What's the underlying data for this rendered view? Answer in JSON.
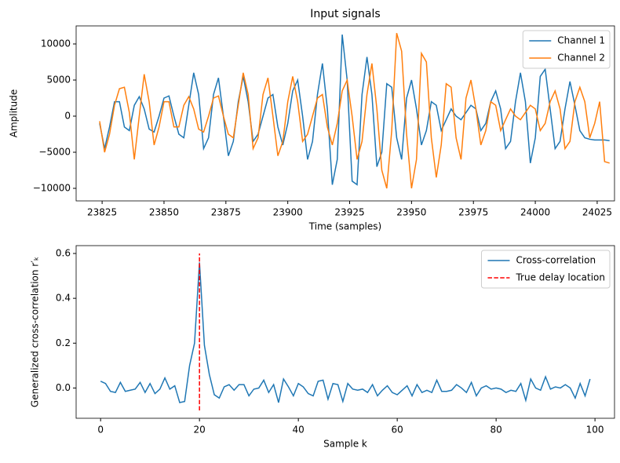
{
  "chart_data": [
    {
      "type": "line",
      "title": "Input signals",
      "xlabel": "Time (samples)",
      "ylabel": "Amplitude",
      "x": [
        23824,
        23826,
        23828,
        23830,
        23832,
        23834,
        23836,
        23838,
        23840,
        23842,
        23844,
        23846,
        23848,
        23850,
        23852,
        23854,
        23856,
        23858,
        23860,
        23862,
        23864,
        23866,
        23868,
        23870,
        23872,
        23874,
        23876,
        23878,
        23880,
        23882,
        23884,
        23886,
        23888,
        23890,
        23892,
        23894,
        23896,
        23898,
        23900,
        23902,
        23904,
        23906,
        23908,
        23910,
        23912,
        23914,
        23916,
        23918,
        23920,
        23922,
        23924,
        23926,
        23928,
        23930,
        23932,
        23934,
        23936,
        23938,
        23940,
        23942,
        23944,
        23946,
        23948,
        23950,
        23952,
        23954,
        23956,
        23958,
        23960,
        23962,
        23964,
        23966,
        23968,
        23970,
        23972,
        23974,
        23976,
        23978,
        23980,
        23982,
        23984,
        23986,
        23988,
        23990,
        23992,
        23994,
        23996,
        23998,
        24000,
        24002,
        24004,
        24006,
        24008,
        24010,
        24012,
        24014,
        24016,
        24018,
        24020,
        24022,
        24024,
        24026,
        24028,
        24030
      ],
      "series": [
        {
          "name": "Channel 1",
          "color": "#1f77b4",
          "values": [
            -1000,
            -4500,
            -1500,
            2000,
            2000,
            -1500,
            -2000,
            1500,
            2700,
            1000,
            -1800,
            -2200,
            0,
            2500,
            2800,
            0,
            -2500,
            -3000,
            1500,
            6000,
            3000,
            -4500,
            -3000,
            3000,
            5300,
            0,
            -5500,
            -3500,
            2000,
            5500,
            2000,
            -3500,
            -2500,
            0,
            2500,
            3000,
            -1500,
            -4000,
            -1000,
            3500,
            5000,
            0,
            -6000,
            -3500,
            3000,
            7300,
            1000,
            -9500,
            -6000,
            11300,
            5000,
            -9000,
            -9500,
            3000,
            8200,
            3000,
            -7000,
            -5000,
            4500,
            4000,
            -3000,
            -6000,
            2500,
            5000,
            1000,
            -4000,
            -2000,
            2000,
            1500,
            -2000,
            -500,
            1000,
            0,
            -500,
            500,
            1500,
            1000,
            -2000,
            -1000,
            2000,
            3500,
            1000,
            -4500,
            -3500,
            2000,
            6000,
            2000,
            -6500,
            -3000,
            5500,
            6500,
            1000,
            -4500,
            -3500,
            1000,
            4800,
            1500,
            -2000,
            -3000,
            -3200,
            -3300,
            -3300,
            -3300,
            -3400
          ]
        },
        {
          "name": "Channel 2",
          "color": "#ff7f0e",
          "values": [
            -700,
            -5000,
            -2500,
            1500,
            3800,
            4000,
            500,
            -6000,
            0,
            5800,
            2000,
            -4000,
            -1500,
            2000,
            2000,
            -1500,
            -1500,
            1500,
            2700,
            1000,
            -1800,
            -2200,
            0,
            2500,
            2800,
            0,
            -2500,
            -3000,
            1500,
            6000,
            3000,
            -4500,
            -3000,
            3000,
            5300,
            0,
            -5500,
            -3500,
            2000,
            5500,
            2000,
            -3500,
            -2500,
            0,
            2500,
            3000,
            -1500,
            -4000,
            -1000,
            3500,
            5000,
            0,
            -6000,
            -3500,
            3000,
            7300,
            1000,
            -7500,
            -10000,
            -2000,
            11500,
            9000,
            -2500,
            -10000,
            -6000,
            8700,
            7500,
            -3000,
            -8500,
            -4000,
            4500,
            4000,
            -3000,
            -6000,
            2500,
            5000,
            1000,
            -4000,
            -2000,
            2000,
            1500,
            -2000,
            -500,
            1000,
            0,
            -500,
            500,
            1500,
            1000,
            -2000,
            -1000,
            2000,
            3500,
            1000,
            -4500,
            -3500,
            2000,
            4000,
            2000,
            -3000,
            -1000,
            2000,
            -6300,
            -6500
          ]
        }
      ],
      "xlim": [
        23814.5,
        24032
      ],
      "ylim": [
        -11740,
        12500
      ],
      "xticks": [
        23825,
        23850,
        23875,
        23900,
        23925,
        23950,
        23975,
        24000,
        24025
      ],
      "yticks": [
        {
          "value": -10000,
          "label": "−10000"
        },
        {
          "value": -5000,
          "label": "−5000"
        },
        0,
        5000,
        10000
      ],
      "legend": "upper right"
    },
    {
      "type": "line",
      "xlabel": "Sample k",
      "ylabel": "Generalized cross-correlation r′ₖ",
      "x": [
        0,
        1,
        2,
        3,
        4,
        5,
        6,
        7,
        8,
        9,
        10,
        11,
        12,
        13,
        14,
        15,
        16,
        17,
        18,
        19,
        20,
        21,
        22,
        23,
        24,
        25,
        26,
        27,
        28,
        29,
        30,
        31,
        32,
        33,
        34,
        35,
        36,
        37,
        38,
        39,
        40,
        41,
        42,
        43,
        44,
        45,
        46,
        47,
        48,
        49,
        50,
        51,
        52,
        53,
        54,
        55,
        56,
        57,
        58,
        59,
        60,
        61,
        62,
        63,
        64,
        65,
        66,
        67,
        68,
        69,
        70,
        71,
        72,
        73,
        74,
        75,
        76,
        77,
        78,
        79,
        80,
        81,
        82,
        83,
        84,
        85,
        86,
        87,
        88,
        89,
        90,
        91,
        92,
        93,
        94,
        95,
        96,
        97,
        98,
        99
      ],
      "series": [
        {
          "name": "Cross-correlation",
          "color": "#1f77b4",
          "values": [
            0.03,
            0.02,
            -0.015,
            -0.02,
            0.025,
            -0.015,
            -0.01,
            -0.005,
            0.025,
            -0.02,
            0.02,
            -0.025,
            -0.005,
            0.045,
            -0.005,
            0.01,
            -0.065,
            -0.06,
            0.1,
            0.2,
            0.56,
            0.19,
            0.06,
            -0.03,
            -0.045,
            0.005,
            0.015,
            -0.01,
            0.015,
            0.015,
            -0.035,
            -0.005,
            0.0,
            0.035,
            -0.02,
            0.015,
            -0.065,
            0.04,
            0.005,
            -0.035,
            0.02,
            0.005,
            -0.025,
            -0.035,
            0.03,
            0.035,
            -0.05,
            0.02,
            0.015,
            -0.06,
            0.02,
            -0.005,
            -0.01,
            -0.005,
            -0.02,
            0.015,
            -0.035,
            -0.01,
            0.01,
            -0.02,
            -0.03,
            -0.01,
            0.01,
            -0.035,
            0.015,
            -0.02,
            -0.01,
            -0.02,
            0.035,
            -0.015,
            -0.015,
            -0.01,
            0.015,
            0.0,
            -0.02,
            0.025,
            -0.035,
            0.0,
            0.01,
            -0.005,
            0.0,
            -0.005,
            -0.02,
            -0.01,
            -0.015,
            0.02,
            -0.055,
            0.04,
            0.0,
            -0.01,
            0.05,
            -0.005,
            0.005,
            0.0,
            0.015,
            0.0,
            -0.045,
            0.02,
            -0.035,
            0.04
          ]
        },
        {
          "name": "True delay location",
          "color": "#ff0000",
          "dashed": true,
          "x": [
            20,
            20
          ],
          "values": [
            -0.1,
            0.6
          ]
        }
      ],
      "xlim": [
        -4.95,
        103.95
      ],
      "ylim": [
        -0.135,
        0.635
      ],
      "xticks": [
        0,
        20,
        40,
        60,
        80,
        100
      ],
      "yticks": [
        {
          "value": 0,
          "label": "0.0"
        },
        {
          "value": 0.2,
          "label": "0.2"
        },
        {
          "value": 0.4,
          "label": "0.4"
        },
        {
          "value": 0.6,
          "label": "0.6"
        }
      ],
      "legend": "upper right"
    }
  ]
}
